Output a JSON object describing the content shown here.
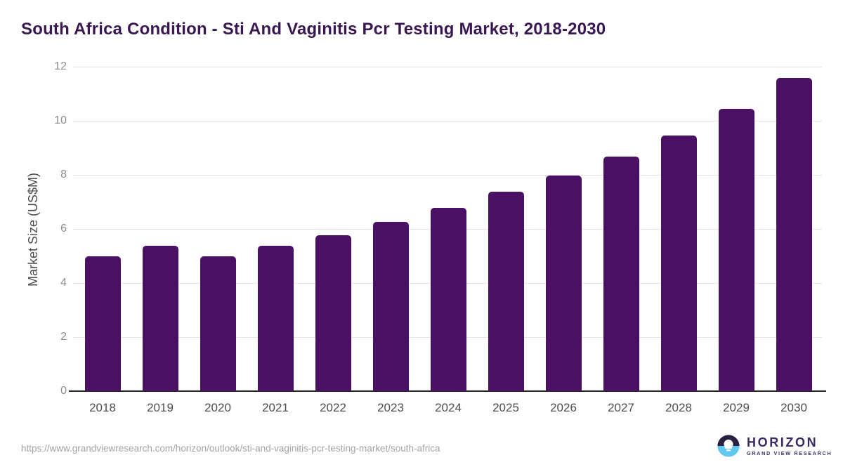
{
  "title": {
    "text": "South Africa Condition - Sti And Vaginitis Pcr Testing Market, 2018-2030",
    "color": "#391750"
  },
  "chart_data": {
    "type": "bar",
    "categories": [
      "2018",
      "2019",
      "2020",
      "2021",
      "2022",
      "2023",
      "2024",
      "2025",
      "2026",
      "2027",
      "2028",
      "2029",
      "2030"
    ],
    "values": [
      4.98,
      5.37,
      4.98,
      5.37,
      5.76,
      6.27,
      6.77,
      7.38,
      7.97,
      8.67,
      9.46,
      10.45,
      11.58
    ],
    "title": "South Africa Condition - Sti And Vaginitis Pcr Testing Market, 2018-2030",
    "xlabel": "",
    "ylabel": "Market Size (US$M)",
    "ylim": [
      0,
      12
    ],
    "yticks": [
      0,
      2,
      4,
      6,
      8,
      10,
      12
    ],
    "grid": true,
    "legend": "none",
    "bar_color": "#4a1061",
    "gridline_color": "#e4e4e4",
    "axis_line_color": "#262626",
    "tick_label_color": "#8c8c8c",
    "category_label_color": "#4d4d4d"
  },
  "footer": {
    "source_url": "https://www.grandviewresearch.com/horizon/outlook/sti-and-vaginitis-pcr-testing-market/south-africa",
    "logo": {
      "name": "HORIZON",
      "subtitle": "GRAND VIEW RESEARCH",
      "mark_top_color": "#2a2142",
      "mark_bottom_color": "#63c7ee",
      "text_color": "#3a2a5f"
    }
  }
}
